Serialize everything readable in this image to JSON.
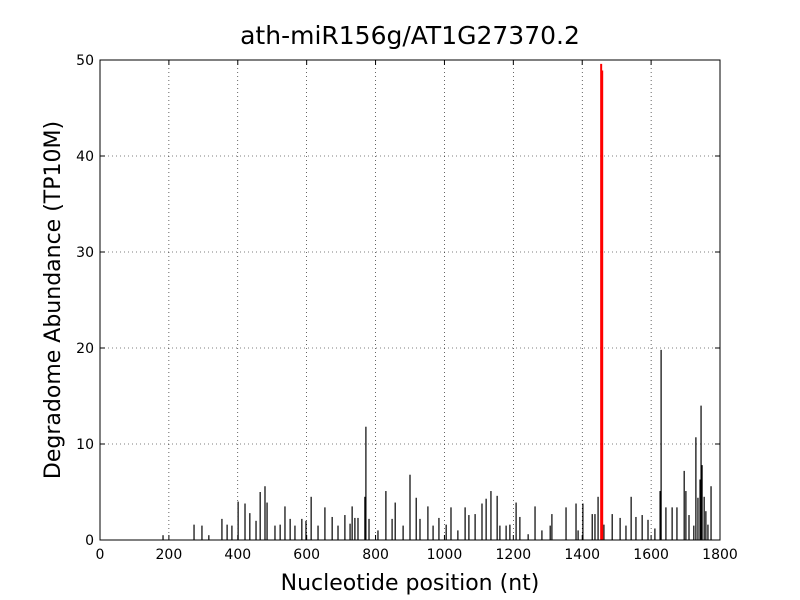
{
  "chart_data": {
    "type": "stem",
    "title": "ath-miR156g/AT1G27370.2",
    "xlabel": "Nucleotide position (nt)",
    "ylabel": "Degradome Abundance (TP10M)",
    "xlim": [
      0,
      1800
    ],
    "xticks": [
      0,
      200,
      400,
      600,
      800,
      1000,
      1200,
      1400,
      1600,
      1800
    ],
    "ylim": [
      0,
      50
    ],
    "yticks": [
      0,
      10,
      20,
      30,
      40,
      50
    ],
    "grid": true,
    "series": [
      {
        "color": "#000000",
        "x": [
          183,
          273,
          296,
          316,
          354,
          369,
          383,
          401,
          421,
          435,
          453,
          465,
          479,
          485,
          508,
          523,
          537,
          552,
          566,
          586,
          598,
          613,
          633,
          653,
          674,
          691,
          711,
          726,
          732,
          740,
          749,
          769,
          772,
          781,
          807,
          830,
          848,
          857,
          880,
          900,
          918,
          929,
          952,
          967,
          984,
          1005,
          1019,
          1039,
          1060,
          1071,
          1089,
          1109,
          1121,
          1135,
          1153,
          1161,
          1179,
          1190,
          1208,
          1219,
          1243,
          1263,
          1283,
          1307,
          1312,
          1353,
          1382,
          1388,
          1402,
          1429,
          1437,
          1446,
          1463,
          1487,
          1510,
          1527,
          1542,
          1556,
          1574,
          1591,
          1611,
          1626,
          1629,
          1643,
          1661,
          1675,
          1696,
          1701,
          1710,
          1724,
          1730,
          1736,
          1742,
          1745,
          1748,
          1754,
          1759,
          1765,
          1774
        ],
        "values": [
          0.5,
          1.6,
          1.5,
          0.5,
          2.2,
          1.6,
          1.5,
          4.0,
          3.8,
          2.8,
          2.0,
          5.0,
          5.6,
          3.9,
          1.5,
          1.6,
          3.5,
          2.2,
          1.5,
          2.2,
          2.0,
          4.5,
          1.5,
          3.4,
          2.4,
          1.5,
          2.6,
          1.7,
          3.5,
          2.3,
          2.3,
          4.5,
          11.8,
          2.2,
          1.0,
          5.1,
          2.2,
          3.9,
          1.5,
          6.8,
          4.4,
          2.2,
          3.5,
          1.5,
          2.3,
          1.6,
          3.4,
          1.0,
          3.4,
          2.6,
          2.7,
          3.8,
          4.3,
          5.1,
          4.6,
          1.5,
          1.5,
          1.6,
          3.9,
          2.4,
          0.6,
          3.5,
          1.0,
          1.5,
          2.7,
          3.4,
          3.8,
          1.0,
          3.8,
          2.7,
          2.7,
          4.5,
          1.6,
          2.7,
          2.3,
          1.5,
          4.5,
          2.4,
          2.6,
          2.1,
          1.2,
          5.1,
          19.8,
          3.4,
          3.4,
          3.4,
          7.2,
          5.1,
          2.6,
          1.5,
          10.7,
          4.4,
          6.3,
          14.0,
          7.8,
          4.5,
          3.0,
          1.6,
          5.6
        ]
      },
      {
        "color": "#ff0000",
        "x": [
          1455,
          1458
        ],
        "values": [
          49.6,
          48.9
        ]
      }
    ]
  }
}
